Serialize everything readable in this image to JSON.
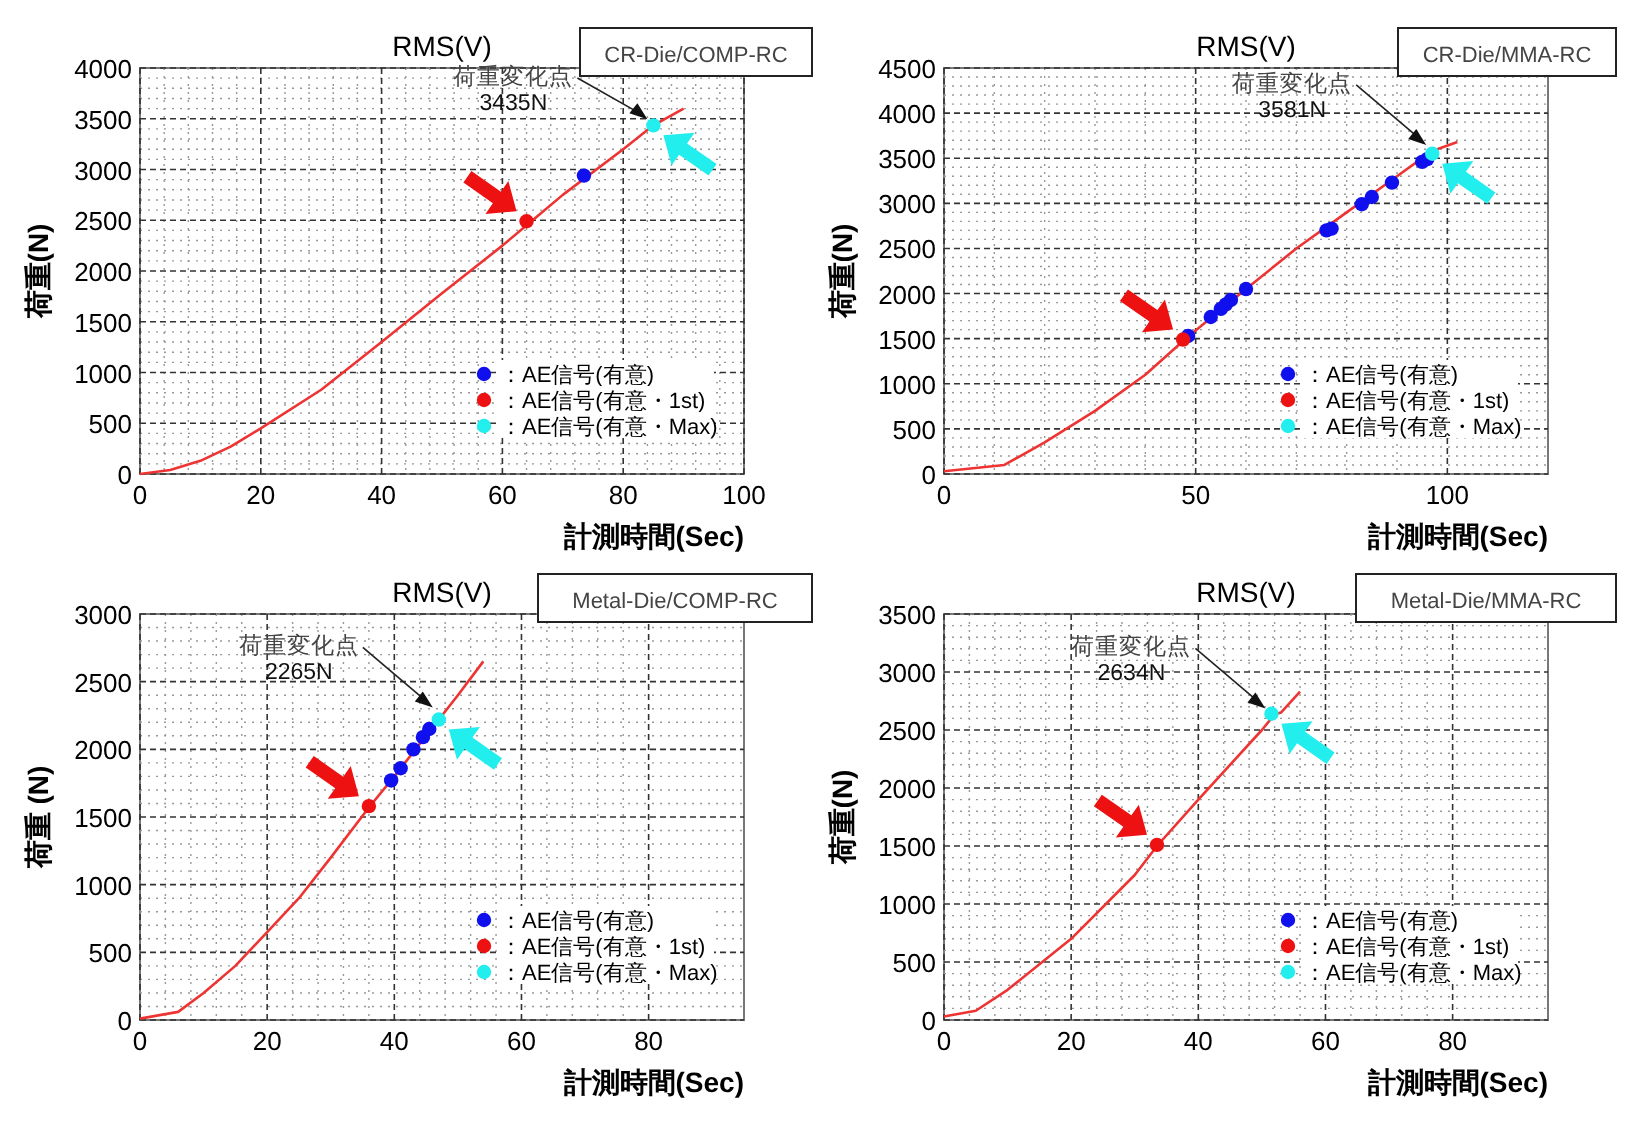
{
  "chart_data": [
    {
      "type": "line",
      "title": "RMS(V)",
      "xlabel": "計測時間(Sec)",
      "ylabel": "荷重(N)",
      "xlim": [
        0,
        100
      ],
      "xticks": [
        0,
        20,
        40,
        60,
        80,
        100
      ],
      "ylim": [
        0,
        4000
      ],
      "yticks": [
        0,
        500,
        1000,
        1500,
        2000,
        2500,
        3000,
        3500,
        4000
      ],
      "grid": true,
      "legend": "bottom right",
      "annotations": [
        "CR-Die/COMP-RC",
        {
          "text": "荷重変化点\n3435N",
          "x": 85,
          "y": 3435
        }
      ],
      "series": [
        {
          "color": "#ee3333",
          "x": [
            0,
            5,
            10,
            15,
            20,
            30,
            40,
            50,
            60,
            65,
            70,
            80,
            85,
            90
          ],
          "values": [
            0,
            40,
            130,
            270,
            450,
            830,
            1300,
            1780,
            2250,
            2500,
            2750,
            3200,
            3435,
            3600
          ]
        },
        {
          "type": "scatter",
          "name": "：AE信号(有意)",
          "color": "#1010ee",
          "marker": "circle",
          "x": [
            73.5
          ],
          "values": [
            2940
          ]
        },
        {
          "type": "scatter",
          "name": "：AE信号(有意・1st)",
          "color": "#ee1111",
          "marker": "circle",
          "x": [
            64
          ],
          "values": [
            2490
          ]
        },
        {
          "type": "scatter",
          "name": "：AE信号(有意・Max)",
          "color": "#22eeee",
          "marker": "circle",
          "x": [
            85
          ],
          "values": [
            3435
          ]
        }
      ]
    },
    {
      "type": "line",
      "title": "RMS(V)",
      "xlabel": "計測時間(Sec)",
      "ylabel": "荷重(N)",
      "xlim": [
        0,
        120
      ],
      "xticks": [
        0,
        50,
        100
      ],
      "ylim": [
        0,
        4500
      ],
      "yticks": [
        0,
        500,
        1000,
        1500,
        2000,
        2500,
        3000,
        3500,
        4000,
        4500
      ],
      "grid": true,
      "legend": "bottom right",
      "annotations": [
        "CR-Die/MMA-RC",
        {
          "text": "荷重変化点\n3581N",
          "x": 97,
          "y": 3581
        }
      ],
      "series": [
        {
          "color": "#ee3333",
          "x": [
            0,
            12,
            20,
            30,
            40,
            48,
            60,
            70,
            80,
            90,
            97,
            102
          ],
          "values": [
            30,
            100,
            350,
            700,
            1100,
            1500,
            2050,
            2500,
            2900,
            3300,
            3581,
            3680
          ]
        },
        {
          "type": "scatter",
          "name": "：AE信号(有意)",
          "color": "#1010ee",
          "marker": "circle",
          "x": [
            48.5,
            53,
            55,
            56,
            57,
            60,
            76,
            77,
            83,
            85,
            89,
            95,
            96
          ],
          "values": [
            1530,
            1740,
            1830,
            1880,
            1930,
            2050,
            2700,
            2720,
            2990,
            3070,
            3230,
            3460,
            3490
          ]
        },
        {
          "type": "scatter",
          "name": "：AE信号(有意・1st)",
          "color": "#ee1111",
          "marker": "circle",
          "x": [
            47.5
          ],
          "values": [
            1490
          ]
        },
        {
          "type": "scatter",
          "name": "：AE信号(有意・Max)",
          "color": "#22eeee",
          "marker": "circle",
          "x": [
            97
          ],
          "values": [
            3550
          ]
        }
      ]
    },
    {
      "type": "line",
      "title": "RMS(V)",
      "xlabel": "計測時間(Sec)",
      "ylabel": "荷重 (N)",
      "xlim": [
        0,
        95
      ],
      "xticks": [
        0,
        20,
        40,
        60,
        80
      ],
      "ylim": [
        0,
        3000
      ],
      "yticks": [
        0,
        500,
        1000,
        1500,
        2000,
        2500,
        3000
      ],
      "grid": true,
      "legend": "bottom right",
      "annotations": [
        "Metal-Die/COMP-RC",
        {
          "text": "荷重変化点\n2265N",
          "x": 47,
          "y": 2265
        }
      ],
      "series": [
        {
          "color": "#ee3333",
          "x": [
            0,
            6,
            10,
            15,
            20,
            25,
            30,
            36,
            40,
            45,
            50,
            54
          ],
          "values": [
            10,
            60,
            200,
            400,
            650,
            900,
            1200,
            1570,
            1800,
            2100,
            2400,
            2650
          ]
        },
        {
          "type": "scatter",
          "name": "：AE信号(有意)",
          "color": "#1010ee",
          "marker": "circle",
          "x": [
            39.5,
            41,
            43,
            44.5,
            45.5
          ],
          "values": [
            1770,
            1860,
            2000,
            2090,
            2150
          ]
        },
        {
          "type": "scatter",
          "name": "：AE信号(有意・1st)",
          "color": "#ee1111",
          "marker": "circle",
          "x": [
            36
          ],
          "values": [
            1580
          ]
        },
        {
          "type": "scatter",
          "name": "：AE信号(有意・Max)",
          "color": "#22eeee",
          "marker": "circle",
          "x": [
            47
          ],
          "values": [
            2220
          ]
        }
      ]
    },
    {
      "type": "line",
      "title": "RMS(V)",
      "xlabel": "計測時間(Sec)",
      "ylabel": "荷重(N)",
      "xlim": [
        0,
        95
      ],
      "xticks": [
        0,
        20,
        40,
        60,
        80
      ],
      "ylim": [
        0,
        3500
      ],
      "yticks": [
        0,
        500,
        1000,
        1500,
        2000,
        2500,
        3000,
        3500
      ],
      "grid": true,
      "legend": "bottom right",
      "annotations": [
        "Metal-Die/MMA-RC",
        {
          "text": "荷重変化点\n2634N",
          "x": 51.5,
          "y": 2634
        }
      ],
      "series": [
        {
          "color": "#ee3333",
          "x": [
            0,
            5,
            10,
            20,
            30,
            33.5,
            40,
            50,
            52,
            53,
            56
          ],
          "values": [
            30,
            80,
            260,
            700,
            1250,
            1500,
            1900,
            2500,
            2634,
            2650,
            2830
          ]
        },
        {
          "type": "scatter",
          "name": "：AE信号(有意)",
          "color": "#1010ee",
          "marker": "circle"
        },
        {
          "type": "scatter",
          "name": "：AE信号(有意・1st)",
          "color": "#ee1111",
          "marker": "circle",
          "x": [
            33.5
          ],
          "values": [
            1510
          ]
        },
        {
          "type": "scatter",
          "name": "：AE信号(有意・Max)",
          "color": "#22eeee",
          "marker": "circle",
          "x": [
            51.5
          ],
          "values": [
            2640
          ]
        }
      ]
    }
  ]
}
